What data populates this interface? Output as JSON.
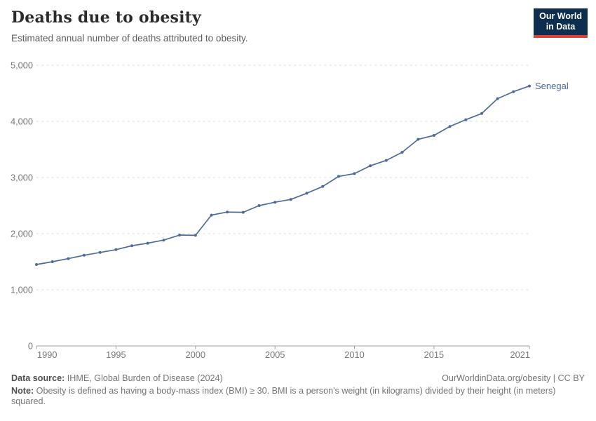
{
  "header": {
    "title": "Deaths due to obesity",
    "subtitle": "Estimated annual number of deaths attributed to obesity.",
    "logo": {
      "line1": "Our World",
      "line2": "in Data"
    }
  },
  "chart_data": {
    "type": "line",
    "title": "Deaths due to obesity",
    "xlabel": "",
    "ylabel": "",
    "grid": "horizontal-dashed",
    "legend_position": "end-of-line-label",
    "ylim": [
      0,
      5000
    ],
    "yticks": [
      0,
      1000,
      2000,
      3000,
      4000,
      5000
    ],
    "ytick_labels": [
      "0",
      "1,000",
      "2,000",
      "3,000",
      "4,000",
      "5,000"
    ],
    "xticks": [
      1990,
      1995,
      2000,
      2005,
      2010,
      2015,
      2021
    ],
    "x": [
      1990,
      1991,
      1992,
      1993,
      1994,
      1995,
      1996,
      1997,
      1998,
      1999,
      2000,
      2001,
      2002,
      2003,
      2004,
      2005,
      2006,
      2007,
      2008,
      2009,
      2010,
      2011,
      2012,
      2013,
      2014,
      2015,
      2016,
      2017,
      2018,
      2019,
      2020,
      2021
    ],
    "series": [
      {
        "name": "Senegal",
        "color": "#4c6a9c",
        "values": [
          1450,
          1500,
          1555,
          1615,
          1665,
          1715,
          1785,
          1830,
          1885,
          1975,
          1970,
          2330,
          2385,
          2380,
          2500,
          2560,
          2610,
          2720,
          2840,
          3020,
          3070,
          3210,
          3305,
          3450,
          3680,
          3750,
          3910,
          4030,
          4140,
          4405,
          4530,
          4630
        ]
      }
    ]
  },
  "footer": {
    "source_label": "Data source:",
    "source_text": " IHME, Global Burden of Disease (2024)",
    "credit": "OurWorldinData.org/obesity | CC BY",
    "note_label": "Note:",
    "note_text": " Obesity is defined as having a body-mass index (BMI) ≥ 30. BMI is a person's weight (in kilograms) divided by their height (in meters) squared."
  },
  "colors": {
    "series_blue": "#4c6a9c",
    "logo_background": "#0d2e4f",
    "logo_accent_red": "#d8423a",
    "gridline": "#dcdcdc",
    "axis": "#a0a0a0",
    "tick_text": "#787878"
  }
}
